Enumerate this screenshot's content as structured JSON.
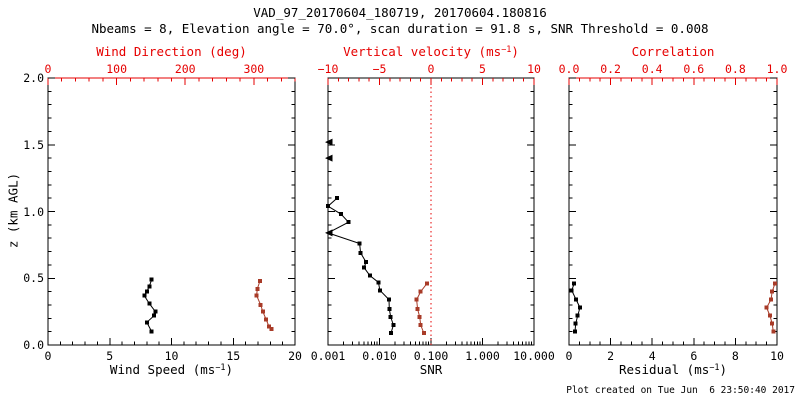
{
  "header": {
    "title": "VAD_97_20170604_180719, 20170604.180816",
    "subtitle": "Nbeams = 8, Elevation angle = 70.0°, scan duration = 91.8 s, SNR Threshold = 0.008"
  },
  "footer": {
    "created": "Plot created on Tue Jun  6 23:50:40 2017"
  },
  "colors": {
    "background": "#ffffff",
    "axis_red": "#e60000",
    "data_red": "#a83b28",
    "data_black": "#000000"
  },
  "chart_data": {
    "type": "line",
    "ylabel": "z (km AGL)",
    "ylim": [
      0,
      2.0
    ],
    "y_minor_step": 0.1,
    "y_major_ticks": [
      {
        "v": 0.0,
        "label": "0.0"
      },
      {
        "v": 0.5,
        "label": "0.5"
      },
      {
        "v": 1.0,
        "label": "1.0"
      },
      {
        "v": 1.5,
        "label": "1.5"
      },
      {
        "v": 2.0,
        "label": "2.0"
      }
    ],
    "panels": [
      {
        "id": "wind",
        "bottom": {
          "title_pre": "Wind Speed (ms",
          "title_sup": "−1",
          "title_post": ")",
          "scale": "linear",
          "lim": [
            0,
            20
          ],
          "minor_step": 1,
          "majors": [
            {
              "v": 0,
              "label": "0"
            },
            {
              "v": 5,
              "label": "5"
            },
            {
              "v": 10,
              "label": "10"
            },
            {
              "v": 15,
              "label": "15"
            },
            {
              "v": 20,
              "label": "20"
            }
          ]
        },
        "top": {
          "title": "Wind Direction (deg)",
          "scale": "linear",
          "lim": [
            0,
            360
          ],
          "minor_step": 20,
          "red_line": true,
          "majors": [
            {
              "v": 0,
              "label": "0"
            },
            {
              "v": 100,
              "label": "100"
            },
            {
              "v": 200,
              "label": "200"
            },
            {
              "v": 300,
              "label": "300"
            }
          ]
        },
        "series": [
          {
            "name": "wind-speed",
            "axis": "bottom",
            "color": "black",
            "marker": "square",
            "z": [
              0.1,
              0.17,
              0.22,
              0.25,
              0.31,
              0.37,
              0.4,
              0.44,
              0.49
            ],
            "v": [
              8.4,
              8.0,
              8.6,
              8.7,
              8.2,
              7.8,
              8.0,
              8.2,
              8.4
            ]
          },
          {
            "name": "wind-direction",
            "axis": "top",
            "color": "red",
            "marker": "square",
            "z": [
              0.12,
              0.14,
              0.19,
              0.25,
              0.3,
              0.37,
              0.42,
              0.48
            ],
            "v": [
              326,
              322,
              318,
              313,
              310,
              304,
              305,
              309
            ]
          }
        ]
      },
      {
        "id": "snr",
        "bottom": {
          "title": "SNR",
          "scale": "log",
          "lim": [
            0.001,
            10
          ],
          "majors": [
            {
              "v": 0.001,
              "label": "0.001"
            },
            {
              "v": 0.01,
              "label": "0.010"
            },
            {
              "v": 0.1,
              "label": "0.100"
            },
            {
              "v": 1,
              "label": "1.000"
            },
            {
              "v": 10,
              "label": "10.000"
            }
          ]
        },
        "top": {
          "title_pre": "Vertical velocity (ms",
          "title_sup": "−1",
          "title_post": ")",
          "scale": "linear",
          "lim": [
            -10,
            10
          ],
          "minor_step": 1,
          "red_line": false,
          "zero_line": true,
          "majors": [
            {
              "v": -10,
              "label": "−10"
            },
            {
              "v": -5,
              "label": "−5"
            },
            {
              "v": 0,
              "label": "0"
            },
            {
              "v": 5,
              "label": "5"
            },
            {
              "v": 10,
              "label": "10"
            }
          ]
        },
        "series": [
          {
            "name": "snr",
            "axis": "bottom",
            "color": "black",
            "marker": "square",
            "z": [
              0.09,
              0.15,
              0.21,
              0.27,
              0.34,
              0.41,
              0.47,
              0.52,
              0.58,
              0.62,
              0.69,
              0.76,
              0.84,
              0.92,
              0.98,
              1.04,
              1.1
            ],
            "v": [
              0.0167,
              0.0186,
              0.0165,
              0.0155,
              0.0153,
              0.0102,
              0.0095,
              0.0065,
              0.005,
              0.0055,
              0.0043,
              0.0041,
              0.001,
              0.0025,
              0.0018,
              0.001,
              0.0015
            ],
            "arrows": [
              12
            ]
          },
          {
            "name": "snr-offscale",
            "axis": "bottom",
            "color": "black",
            "marker": "arrow-left",
            "line": false,
            "z": [
              1.4,
              1.52
            ],
            "v": [
              0.001,
              0.001
            ]
          },
          {
            "name": "vertical-velocity",
            "axis": "top",
            "color": "red",
            "marker": "square",
            "z": [
              0.09,
              0.15,
              0.21,
              0.27,
              0.34,
              0.4,
              0.46
            ],
            "v": [
              -0.7,
              -1.0,
              -1.1,
              -1.3,
              -1.4,
              -1.0,
              -0.4
            ]
          }
        ]
      },
      {
        "id": "residual",
        "bottom": {
          "title_pre": "Residual (ms",
          "title_sup": "−1",
          "title_post": ")",
          "scale": "linear",
          "lim": [
            0,
            10
          ],
          "minor_step": 0.5,
          "majors": [
            {
              "v": 0,
              "label": "0"
            },
            {
              "v": 2,
              "label": "2"
            },
            {
              "v": 4,
              "label": "4"
            },
            {
              "v": 6,
              "label": "6"
            },
            {
              "v": 8,
              "label": "8"
            },
            {
              "v": 10,
              "label": "10"
            }
          ]
        },
        "top": {
          "title": "Correlation",
          "scale": "linear",
          "lim": [
            0,
            1
          ],
          "minor_step": 0.05,
          "red_line": true,
          "majors": [
            {
              "v": 0,
              "label": "0.0"
            },
            {
              "v": 0.2,
              "label": "0.2"
            },
            {
              "v": 0.4,
              "label": "0.4"
            },
            {
              "v": 0.6,
              "label": "0.6"
            },
            {
              "v": 0.8,
              "label": "0.8"
            },
            {
              "v": 1,
              "label": "1.0"
            }
          ]
        },
        "series": [
          {
            "name": "residual",
            "axis": "bottom",
            "color": "black",
            "marker": "square",
            "z": [
              0.1,
              0.16,
              0.22,
              0.28,
              0.34,
              0.41,
              0.46
            ],
            "v": [
              0.29,
              0.32,
              0.42,
              0.53,
              0.34,
              0.13,
              0.25
            ]
          },
          {
            "name": "correlation",
            "axis": "top",
            "color": "red",
            "marker": "square",
            "z": [
              0.1,
              0.16,
              0.22,
              0.28,
              0.34,
              0.4,
              0.46
            ],
            "v": [
              0.982,
              0.977,
              0.966,
              0.95,
              0.971,
              0.977,
              0.99
            ]
          }
        ]
      }
    ]
  }
}
